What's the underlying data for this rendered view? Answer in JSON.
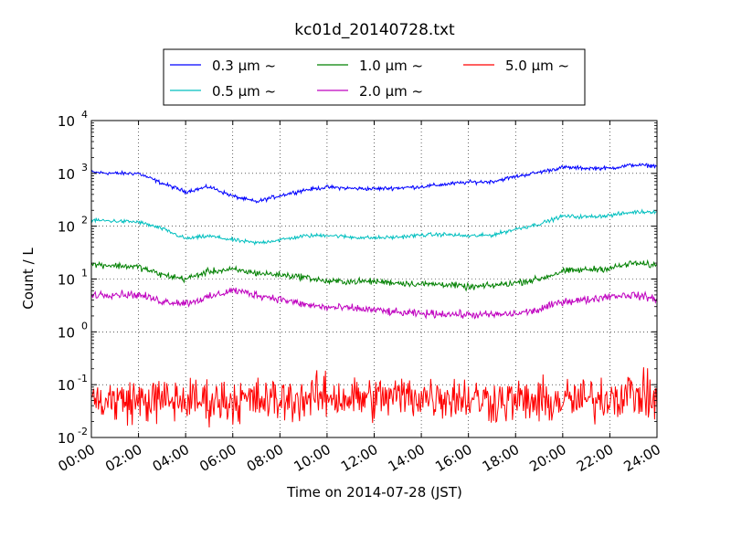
{
  "chart_data": {
    "type": "line",
    "title": "kc01d_20140728.txt",
    "xlabel": "Time on 2014-07-28 (JST)",
    "ylabel": "Count / L",
    "y_scale": "log",
    "ylim": [
      0.01,
      10000
    ],
    "xlim": [
      "00:00",
      "24:00"
    ],
    "x_ticks": [
      "00:00",
      "02:00",
      "04:00",
      "06:00",
      "08:00",
      "10:00",
      "12:00",
      "14:00",
      "16:00",
      "18:00",
      "20:00",
      "22:00",
      "24:00"
    ],
    "y_ticks": [
      {
        "base": "10",
        "exp": "-2",
        "value": 0.01
      },
      {
        "base": "10",
        "exp": "-1",
        "value": 0.1
      },
      {
        "base": "10",
        "exp": "0",
        "value": 1
      },
      {
        "base": "10",
        "exp": "1",
        "value": 10
      },
      {
        "base": "10",
        "exp": "2",
        "value": 100
      },
      {
        "base": "10",
        "exp": "3",
        "value": 1000
      },
      {
        "base": "10",
        "exp": "4",
        "value": 10000
      }
    ],
    "grid": true,
    "legend_position": "top-center",
    "x": [
      "00:00",
      "01:00",
      "02:00",
      "03:00",
      "04:00",
      "05:00",
      "06:00",
      "07:00",
      "08:00",
      "09:00",
      "10:00",
      "11:00",
      "12:00",
      "13:00",
      "14:00",
      "15:00",
      "16:00",
      "17:00",
      "18:00",
      "19:00",
      "20:00",
      "21:00",
      "22:00",
      "23:00",
      "24:00"
    ],
    "series": [
      {
        "name": "0.3",
        "color": "#0000ff",
        "noise": 0.03,
        "values": [
          1050,
          1000,
          1000,
          650,
          450,
          560,
          370,
          290,
          380,
          480,
          550,
          520,
          510,
          530,
          560,
          620,
          680,
          700,
          870,
          1050,
          1300,
          1250,
          1250,
          1450,
          1380
        ]
      },
      {
        "name": "0.5",
        "color": "#00bfbf",
        "noise": 0.03,
        "values": [
          130,
          125,
          120,
          90,
          58,
          65,
          55,
          48,
          55,
          65,
          68,
          62,
          60,
          62,
          68,
          70,
          65,
          68,
          88,
          110,
          155,
          150,
          160,
          185,
          190
        ]
      },
      {
        "name": "1.0",
        "color": "#008000",
        "noise": 0.05,
        "values": [
          19,
          18,
          17,
          12,
          10,
          14,
          15,
          13,
          12,
          11,
          9,
          9,
          9,
          8.5,
          8,
          8,
          7,
          7.5,
          8.5,
          10,
          14,
          15,
          16,
          20,
          18
        ]
      },
      {
        "name": "2.0",
        "color": "#bf00bf",
        "noise": 0.06,
        "values": [
          5,
          5.2,
          5,
          3.8,
          3.5,
          4.5,
          6.2,
          5,
          4.2,
          3.3,
          2.9,
          2.8,
          2.6,
          2.3,
          2.2,
          2.2,
          2.1,
          2.1,
          2.2,
          2.6,
          3.8,
          4.0,
          4.8,
          5.0,
          4.2
        ]
      },
      {
        "name": "5.0",
        "color": "#ff0000",
        "noise": 0.35,
        "values": [
          0.05,
          0.05,
          0.05,
          0.05,
          0.05,
          0.05,
          0.05,
          0.05,
          0.05,
          0.055,
          0.06,
          0.055,
          0.055,
          0.06,
          0.06,
          0.06,
          0.055,
          0.05,
          0.05,
          0.045,
          0.05,
          0.05,
          0.06,
          0.07,
          0.05
        ]
      }
    ],
    "legend": [
      {
        "label": "0.3 μm  ~",
        "color": "#0000ff"
      },
      {
        "label": "1.0 μm  ~",
        "color": "#008000"
      },
      {
        "label": "5.0 μm  ~",
        "color": "#ff0000"
      },
      {
        "label": "0.5 μm  ~",
        "color": "#00bfbf"
      },
      {
        "label": "2.0 μm  ~",
        "color": "#bf00bf"
      }
    ]
  }
}
